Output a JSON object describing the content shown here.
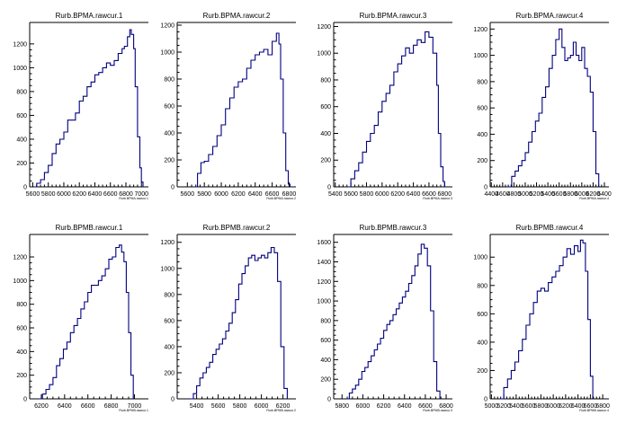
{
  "chart_data": [
    {
      "type": "histogram",
      "title": "Rurb.BPMA.rawcur.1",
      "xlabel": "Rurb.BPMA.rawcur.1",
      "x_ticks": [
        5600,
        5800,
        6000,
        6200,
        6400,
        6600,
        6800,
        7000
      ],
      "x_tick_labels": [
        "5600",
        "5800",
        "6000",
        "6200",
        "6400",
        "6600",
        "6800",
        "7000"
      ],
      "xlim": [
        5560,
        7090
      ],
      "y_ticks": [
        0,
        200,
        400,
        600,
        800,
        1000,
        1200
      ],
      "y_tick_labels": [
        "0",
        "200",
        "400",
        "600",
        "800",
        "1000",
        "1200"
      ],
      "ylim": [
        0,
        1380
      ],
      "x": [
        5620,
        5650,
        5700,
        5750,
        5800,
        5850,
        5900,
        5950,
        6000,
        6050,
        6100,
        6150,
        6200,
        6250,
        6300,
        6350,
        6400,
        6450,
        6500,
        6550,
        6600,
        6650,
        6700,
        6750,
        6780,
        6820,
        6850,
        6870,
        6900,
        6920,
        6950,
        6980,
        7000,
        7020
      ],
      "values": [
        0,
        30,
        60,
        120,
        180,
        280,
        360,
        400,
        460,
        560,
        560,
        620,
        720,
        760,
        840,
        880,
        940,
        960,
        1000,
        1040,
        1020,
        1060,
        1120,
        1160,
        1180,
        1260,
        1320,
        1280,
        1160,
        840,
        420,
        160,
        40,
        0
      ]
    },
    {
      "type": "histogram",
      "title": "Rurb.BPMA.rawcur.2",
      "xlabel": "Rurb.BPMA.rawcur.2",
      "x_ticks": [
        5600,
        5800,
        6000,
        6200,
        6400,
        6600,
        6800
      ],
      "x_tick_labels": [
        "5600",
        "5800",
        "6000",
        "6200",
        "6400",
        "6600",
        "6800"
      ],
      "xlim": [
        5480,
        6880
      ],
      "y_ticks": [
        0,
        200,
        400,
        600,
        800,
        1000,
        1200
      ],
      "y_tick_labels": [
        "0",
        "200",
        "400",
        "600",
        "800",
        "1000",
        "1200"
      ],
      "ylim": [
        0,
        1220
      ],
      "x": [
        5680,
        5720,
        5760,
        5800,
        5850,
        5900,
        5950,
        6000,
        6050,
        6100,
        6150,
        6200,
        6250,
        6300,
        6350,
        6400,
        6450,
        6500,
        6550,
        6600,
        6650,
        6680,
        6700,
        6730,
        6760,
        6790,
        6810
      ],
      "values": [
        0,
        100,
        180,
        190,
        240,
        300,
        380,
        460,
        580,
        660,
        740,
        780,
        800,
        880,
        940,
        980,
        1000,
        1020,
        980,
        1080,
        1140,
        1060,
        800,
        400,
        120,
        20,
        0
      ]
    },
    {
      "type": "histogram",
      "title": "Rurb.BPMA.rawcur.3",
      "xlabel": "Rurb.BPMA.rawcur.3",
      "x_ticks": [
        5400,
        5600,
        5800,
        6000,
        6200,
        6400,
        6600,
        6800
      ],
      "x_tick_labels": [
        "5400",
        "5600",
        "5800",
        "6000",
        "6200",
        "6400",
        "6600",
        "6800"
      ],
      "xlim": [
        5380,
        6900
      ],
      "y_ticks": [
        0,
        200,
        400,
        600,
        800,
        1000,
        1200
      ],
      "y_tick_labels": [
        "0",
        "200",
        "400",
        "600",
        "800",
        "1000",
        "1200"
      ],
      "ylim": [
        0,
        1230
      ],
      "x": [
        5560,
        5600,
        5650,
        5700,
        5750,
        5800,
        5850,
        5900,
        5950,
        6000,
        6050,
        6100,
        6150,
        6200,
        6250,
        6300,
        6350,
        6400,
        6450,
        6500,
        6550,
        6600,
        6650,
        6700,
        6720,
        6750,
        6780,
        6800
      ],
      "values": [
        0,
        60,
        120,
        180,
        260,
        340,
        400,
        460,
        560,
        640,
        700,
        760,
        860,
        920,
        980,
        1040,
        1000,
        1060,
        1100,
        1080,
        1160,
        1120,
        1000,
        760,
        400,
        150,
        40,
        0
      ]
    },
    {
      "type": "histogram",
      "title": "Rurb.BPMA.rawcur.4",
      "xlabel": "Rurb.BPMA.rawcur.4",
      "x_ticks": [
        4400,
        4600,
        4800,
        5000,
        5200,
        5400,
        5600,
        5800,
        6000,
        6200,
        6400
      ],
      "x_tick_labels": [
        "4400",
        "4600",
        "4800",
        "5000",
        "5200",
        "5400",
        "5600",
        "5800",
        "6000",
        "6200",
        "6400"
      ],
      "xlim": [
        4380,
        6480
      ],
      "y_ticks": [
        0,
        200,
        400,
        600,
        800,
        1000,
        1200
      ],
      "y_tick_labels": [
        "0",
        "200",
        "400",
        "600",
        "800",
        "1000",
        "1200"
      ],
      "ylim": [
        0,
        1250
      ],
      "x": [
        4700,
        4760,
        4820,
        4880,
        4940,
        5000,
        5060,
        5120,
        5180,
        5240,
        5300,
        5360,
        5420,
        5480,
        5540,
        5600,
        5650,
        5700,
        5750,
        5800,
        5850,
        5900,
        5950,
        6000,
        6050,
        6100,
        6150,
        6200,
        6250,
        6300
      ],
      "values": [
        0,
        80,
        120,
        160,
        200,
        260,
        340,
        420,
        500,
        560,
        680,
        760,
        900,
        1000,
        1120,
        1200,
        1060,
        960,
        980,
        1000,
        1100,
        1000,
        960,
        1060,
        900,
        840,
        720,
        420,
        100,
        0
      ]
    },
    {
      "type": "histogram",
      "title": "Rurb.BPMB.rawcur.1",
      "xlabel": "Rurb.BPMB.rawcur.1",
      "x_ticks": [
        6200,
        6400,
        6600,
        6800,
        7000
      ],
      "x_tick_labels": [
        "6200",
        "6400",
        "6600",
        "6800",
        "7000"
      ],
      "xlim": [
        6100,
        7120
      ],
      "y_ticks": [
        0,
        200,
        400,
        600,
        800,
        1000,
        1200
      ],
      "y_tick_labels": [
        "0",
        "200",
        "400",
        "600",
        "800",
        "1000",
        "1200"
      ],
      "ylim": [
        0,
        1390
      ],
      "x": [
        6180,
        6210,
        6240,
        6270,
        6300,
        6330,
        6360,
        6390,
        6420,
        6450,
        6480,
        6510,
        6540,
        6570,
        6600,
        6630,
        6660,
        6690,
        6720,
        6750,
        6780,
        6810,
        6840,
        6870,
        6890,
        6910,
        6930,
        6950,
        6970,
        6990
      ],
      "values": [
        0,
        40,
        80,
        120,
        180,
        280,
        340,
        420,
        480,
        560,
        620,
        680,
        760,
        820,
        900,
        960,
        960,
        1000,
        1040,
        1100,
        1180,
        1200,
        1280,
        1300,
        1240,
        1160,
        900,
        560,
        200,
        0
      ]
    },
    {
      "type": "histogram",
      "title": "Rurb.BPMB.rawcur.2",
      "xlabel": "Rurb.BPMB.rawcur.2",
      "x_ticks": [
        5400,
        5600,
        5800,
        6000,
        6200
      ],
      "x_tick_labels": [
        "5400",
        "5600",
        "5800",
        "6000",
        "6200"
      ],
      "xlim": [
        5220,
        6320
      ],
      "y_ticks": [
        0,
        200,
        400,
        600,
        800,
        1000,
        1200
      ],
      "y_tick_labels": [
        "0",
        "200",
        "400",
        "600",
        "800",
        "1000",
        "1200"
      ],
      "ylim": [
        0,
        1260
      ],
      "x": [
        5340,
        5370,
        5400,
        5430,
        5460,
        5490,
        5520,
        5550,
        5580,
        5610,
        5640,
        5670,
        5700,
        5730,
        5760,
        5790,
        5820,
        5850,
        5880,
        5910,
        5940,
        5970,
        6000,
        6030,
        6060,
        6090,
        6120,
        6150,
        6180,
        6210,
        6240
      ],
      "values": [
        0,
        40,
        100,
        160,
        200,
        240,
        280,
        340,
        380,
        420,
        460,
        520,
        580,
        660,
        760,
        880,
        960,
        1020,
        1080,
        1100,
        1060,
        1080,
        1100,
        1080,
        1120,
        1160,
        1120,
        900,
        400,
        80,
        0
      ]
    },
    {
      "type": "histogram",
      "title": "Rurb.BPMB.rawcur.3",
      "xlabel": "Rurb.BPMB.rawcur.3",
      "x_ticks": [
        5800,
        6000,
        6200,
        6400,
        6600,
        6800
      ],
      "x_tick_labels": [
        "5800",
        "6000",
        "6200",
        "6400",
        "6600",
        "6800"
      ],
      "xlim": [
        5720,
        6860
      ],
      "y_ticks": [
        0,
        200,
        400,
        600,
        800,
        1000,
        1200,
        1400,
        1600
      ],
      "y_tick_labels": [
        "0",
        "200",
        "400",
        "600",
        "800",
        "1000",
        "1200",
        "1400",
        "1600"
      ],
      "ylim": [
        0,
        1680
      ],
      "x": [
        5840,
        5870,
        5900,
        5930,
        5960,
        5990,
        6020,
        6050,
        6080,
        6110,
        6140,
        6170,
        6200,
        6230,
        6260,
        6290,
        6320,
        6350,
        6380,
        6410,
        6440,
        6470,
        6500,
        6530,
        6560,
        6590,
        6620,
        6650,
        6680,
        6710,
        6740
      ],
      "values": [
        0,
        60,
        100,
        140,
        200,
        280,
        320,
        380,
        440,
        500,
        560,
        620,
        700,
        760,
        800,
        860,
        920,
        980,
        1040,
        1100,
        1180,
        1260,
        1360,
        1480,
        1580,
        1540,
        1360,
        900,
        380,
        80,
        0
      ]
    },
    {
      "type": "histogram",
      "title": "Rurb.BPMB.rawcur.4",
      "xlabel": "Rurb.BPMB.rawcur.4",
      "x_ticks": [
        5000,
        5200,
        5400,
        5600,
        5800,
        6000,
        6200,
        6400,
        6600,
        6800
      ],
      "x_tick_labels": [
        "5000",
        "5200",
        "5400",
        "5600",
        "5800",
        "6000",
        "6200",
        "6400",
        "6600",
        "6800"
      ],
      "xlim": [
        4980,
        6900
      ],
      "y_ticks": [
        0,
        200,
        400,
        600,
        800,
        1000
      ],
      "y_tick_labels": [
        "0",
        "200",
        "400",
        "600",
        "800",
        "1000"
      ],
      "ylim": [
        0,
        1160
      ],
      "x": [
        5140,
        5200,
        5260,
        5320,
        5380,
        5440,
        5500,
        5560,
        5620,
        5680,
        5740,
        5800,
        5860,
        5920,
        5980,
        6040,
        6100,
        6160,
        6220,
        6280,
        6340,
        6400,
        6440,
        6480,
        6520,
        6560,
        6600,
        6640
      ],
      "values": [
        0,
        80,
        140,
        200,
        260,
        340,
        420,
        520,
        600,
        680,
        760,
        780,
        760,
        820,
        860,
        900,
        940,
        1000,
        1060,
        1020,
        1080,
        1040,
        1120,
        1100,
        900,
        560,
        160,
        0
      ]
    }
  ],
  "colors": {
    "line": "#00007f",
    "axis": "#000000",
    "text": "#000000",
    "title_box": "#ffffff"
  }
}
